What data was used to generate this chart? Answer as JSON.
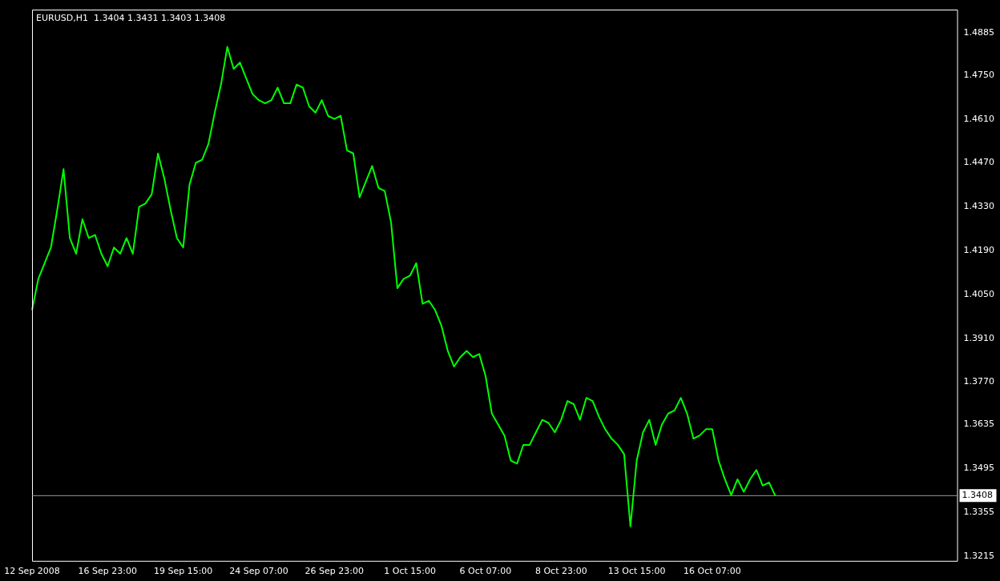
{
  "chart_data": {
    "type": "line",
    "title": "EURUSD,H1  1.3404 1.3431 1.3403 1.3408",
    "categories": [
      "12 Sep 2008",
      null,
      null,
      null,
      null,
      null,
      null,
      null,
      null,
      null,
      null,
      null,
      "16 Sep 23:00",
      null,
      null,
      null,
      null,
      null,
      null,
      null,
      null,
      null,
      null,
      null,
      "19 Sep 15:00",
      null,
      null,
      null,
      null,
      null,
      null,
      null,
      null,
      null,
      null,
      null,
      "24 Sep 07:00",
      null,
      null,
      null,
      null,
      null,
      null,
      null,
      null,
      null,
      null,
      null,
      "26 Sep 23:00",
      null,
      null,
      null,
      null,
      null,
      null,
      null,
      null,
      null,
      null,
      null,
      "1 Oct 15:00",
      null,
      null,
      null,
      null,
      null,
      null,
      null,
      null,
      null,
      null,
      null,
      "6 Oct 07:00",
      null,
      null,
      null,
      null,
      null,
      null,
      null,
      null,
      null,
      null,
      null,
      "8 Oct 23:00",
      null,
      null,
      null,
      null,
      null,
      null,
      null,
      null,
      null,
      null,
      null,
      "13 Oct 15:00",
      null,
      null,
      null,
      null,
      null,
      null,
      null,
      null,
      null,
      null,
      null,
      "16 Oct 07:00",
      null,
      null,
      null,
      null,
      null,
      null,
      null,
      null,
      null,
      null,
      null,
      null,
      null,
      null,
      null,
      null,
      null,
      null,
      null,
      null,
      null,
      null,
      null,
      null,
      null,
      null,
      null,
      null,
      null,
      null,
      null,
      null,
      null,
      null,
      null,
      null,
      null,
      null,
      null
    ],
    "series": [
      {
        "color": "#00ff00",
        "values": [
          1.4,
          1.41,
          1.415,
          1.42,
          1.432,
          1.445,
          1.423,
          1.418,
          1.429,
          1.423,
          1.424,
          1.418,
          1.414,
          1.42,
          1.418,
          1.423,
          1.418,
          1.433,
          1.434,
          1.437,
          1.45,
          1.442,
          1.432,
          1.423,
          1.42,
          1.44,
          1.447,
          1.448,
          1.453,
          1.463,
          1.472,
          1.484,
          1.477,
          1.479,
          1.474,
          1.469,
          1.467,
          1.466,
          1.467,
          1.471,
          1.466,
          1.466,
          1.472,
          1.471,
          1.465,
          1.463,
          1.467,
          1.462,
          1.461,
          1.462,
          1.451,
          1.45,
          1.436,
          1.441,
          1.446,
          1.439,
          1.438,
          1.428,
          1.407,
          1.41,
          1.411,
          1.415,
          1.402,
          1.403,
          1.4,
          1.395,
          1.387,
          1.382,
          1.385,
          1.387,
          1.385,
          1.386,
          1.379,
          1.367,
          1.3635,
          1.36,
          1.352,
          1.351,
          1.357,
          1.357,
          1.361,
          1.365,
          1.364,
          1.361,
          1.365,
          1.371,
          1.37,
          1.365,
          1.372,
          1.371,
          1.366,
          1.362,
          1.359,
          1.357,
          1.354,
          1.331,
          1.352,
          1.361,
          1.365,
          1.357,
          1.3635,
          1.367,
          1.368,
          1.372,
          1.367,
          1.359,
          1.36,
          1.362,
          1.362,
          1.352,
          1.346,
          1.341,
          1.346,
          1.342,
          1.346,
          1.349,
          1.344,
          1.345,
          1.3408,
          null,
          null,
          null,
          null,
          null,
          null,
          null,
          null,
          null,
          null,
          null,
          null,
          null,
          null,
          null,
          null,
          null,
          null,
          null,
          null,
          null,
          null,
          null,
          null,
          null,
          null,
          null,
          null,
          null
        ]
      }
    ],
    "ylim": [
      1.32,
      1.4959
    ],
    "yticks": [
      1.4885,
      {
        "value": 1.475,
        "label": "1.4750"
      },
      {
        "value": 1.461,
        "label": "1.4610"
      },
      {
        "value": 1.447,
        "label": "1.4470"
      },
      {
        "value": 1.433,
        "label": "1.4330"
      },
      {
        "value": 1.419,
        "label": "1.4190"
      },
      {
        "value": 1.405,
        "label": "1.4050"
      },
      {
        "value": 1.391,
        "label": "1.3910"
      },
      {
        "value": 1.377,
        "label": "1.3770"
      },
      1.3635,
      1.3495,
      1.3355,
      1.3215
    ],
    "ref_lines": [
      {
        "axis": "y",
        "value": 1.3408,
        "label": "1.3408",
        "color": "#8e9aa6"
      }
    ],
    "marker": "none",
    "grid": false,
    "legend": false
  }
}
